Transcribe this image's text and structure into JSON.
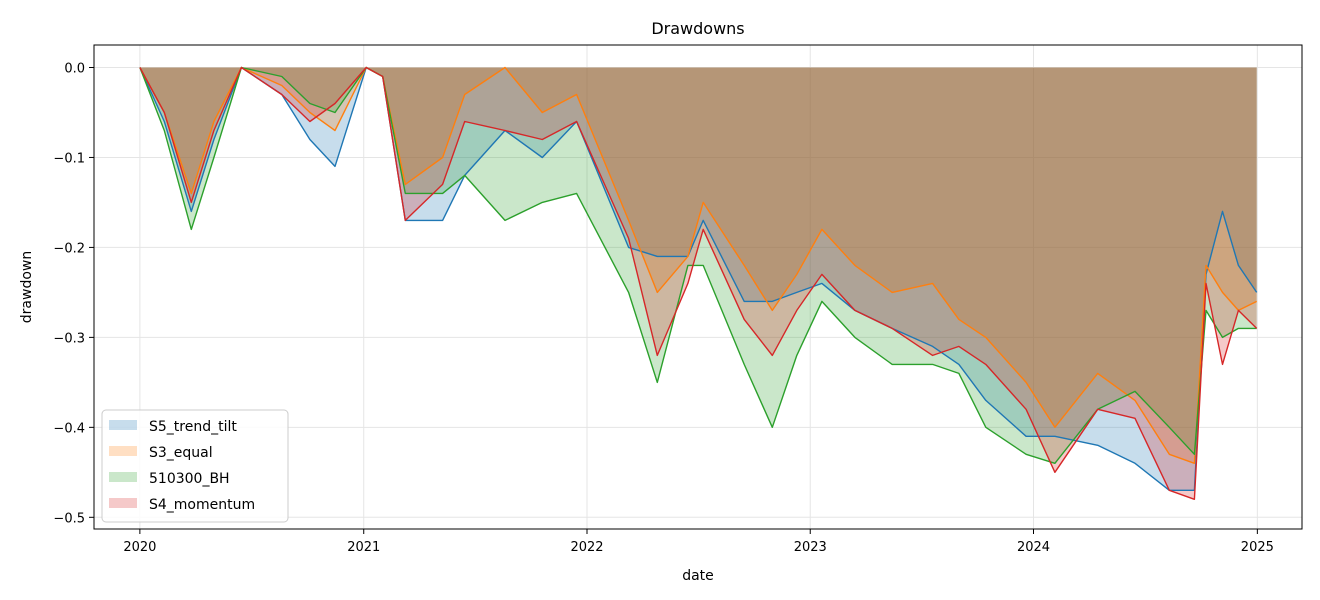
{
  "chart_data": {
    "type": "area",
    "title": "Drawdowns",
    "xlabel": "date",
    "ylabel": "drawdown",
    "xlim": [
      "2019-10-18",
      "2025-03-15"
    ],
    "ylim": [
      -0.513,
      0.025
    ],
    "x_ticks": [
      "2020-01-01",
      "2021-01-01",
      "2022-01-01",
      "2023-01-01",
      "2024-01-01",
      "2025-01-01"
    ],
    "x_tick_labels": [
      "2020",
      "2021",
      "2022",
      "2023",
      "2024",
      "2025"
    ],
    "y_ticks": [
      0.0,
      -0.1,
      -0.2,
      -0.3,
      -0.4,
      -0.5
    ],
    "y_tick_labels": [
      "0.0",
      "−0.1",
      "−0.2",
      "−0.3",
      "−0.4",
      "−0.5"
    ],
    "grid": true,
    "legend_position": "lower-left",
    "fill_alpha": 0.25,
    "series": [
      {
        "name": "S5_trend_tilt",
        "color": "#1f77b4",
        "points": [
          [
            "2020-01-01",
            0.0
          ],
          [
            "2020-02-10",
            -0.06
          ],
          [
            "2020-03-25",
            -0.16
          ],
          [
            "2020-05-01",
            -0.08
          ],
          [
            "2020-06-15",
            0.0
          ],
          [
            "2020-08-20",
            -0.03
          ],
          [
            "2020-10-05",
            -0.08
          ],
          [
            "2020-11-15",
            -0.11
          ],
          [
            "2021-01-05",
            0.0
          ],
          [
            "2021-02-01",
            -0.01
          ],
          [
            "2021-03-10",
            -0.17
          ],
          [
            "2021-05-10",
            -0.17
          ],
          [
            "2021-06-15",
            -0.12
          ],
          [
            "2021-08-20",
            -0.07
          ],
          [
            "2021-10-20",
            -0.1
          ],
          [
            "2021-12-15",
            -0.06
          ],
          [
            "2022-03-10",
            -0.2
          ],
          [
            "2022-04-26",
            -0.21
          ],
          [
            "2022-06-15",
            -0.21
          ],
          [
            "2022-07-10",
            -0.17
          ],
          [
            "2022-09-15",
            -0.26
          ],
          [
            "2022-10-31",
            -0.26
          ],
          [
            "2022-12-10",
            -0.25
          ],
          [
            "2023-01-20",
            -0.24
          ],
          [
            "2023-03-15",
            -0.27
          ],
          [
            "2023-05-15",
            -0.29
          ],
          [
            "2023-07-20",
            -0.31
          ],
          [
            "2023-09-01",
            -0.33
          ],
          [
            "2023-10-15",
            -0.37
          ],
          [
            "2023-12-20",
            -0.41
          ],
          [
            "2024-02-05",
            -0.41
          ],
          [
            "2024-04-15",
            -0.42
          ],
          [
            "2024-06-15",
            -0.44
          ],
          [
            "2024-08-10",
            -0.47
          ],
          [
            "2024-09-20",
            -0.47
          ],
          [
            "2024-10-09",
            -0.23
          ],
          [
            "2024-11-05",
            -0.16
          ],
          [
            "2024-12-01",
            -0.22
          ],
          [
            "2024-12-31",
            -0.25
          ]
        ]
      },
      {
        "name": "S3_equal",
        "color": "#ff7f0e",
        "points": [
          [
            "2020-01-01",
            0.0
          ],
          [
            "2020-02-10",
            -0.05
          ],
          [
            "2020-03-25",
            -0.14
          ],
          [
            "2020-05-01",
            -0.06
          ],
          [
            "2020-06-15",
            0.0
          ],
          [
            "2020-08-20",
            -0.02
          ],
          [
            "2020-10-05",
            -0.05
          ],
          [
            "2020-11-15",
            -0.07
          ],
          [
            "2021-01-05",
            0.0
          ],
          [
            "2021-02-01",
            -0.01
          ],
          [
            "2021-03-10",
            -0.13
          ],
          [
            "2021-05-10",
            -0.1
          ],
          [
            "2021-06-15",
            -0.03
          ],
          [
            "2021-08-20",
            0.0
          ],
          [
            "2021-10-20",
            -0.05
          ],
          [
            "2021-12-15",
            -0.03
          ],
          [
            "2022-03-10",
            -0.17
          ],
          [
            "2022-04-26",
            -0.25
          ],
          [
            "2022-06-15",
            -0.21
          ],
          [
            "2022-07-10",
            -0.15
          ],
          [
            "2022-09-15",
            -0.22
          ],
          [
            "2022-10-31",
            -0.27
          ],
          [
            "2022-12-10",
            -0.23
          ],
          [
            "2023-01-20",
            -0.18
          ],
          [
            "2023-03-15",
            -0.22
          ],
          [
            "2023-05-15",
            -0.25
          ],
          [
            "2023-07-20",
            -0.24
          ],
          [
            "2023-09-01",
            -0.28
          ],
          [
            "2023-10-15",
            -0.3
          ],
          [
            "2023-12-20",
            -0.35
          ],
          [
            "2024-02-05",
            -0.4
          ],
          [
            "2024-04-15",
            -0.34
          ],
          [
            "2024-06-15",
            -0.37
          ],
          [
            "2024-08-10",
            -0.43
          ],
          [
            "2024-09-20",
            -0.44
          ],
          [
            "2024-10-09",
            -0.22
          ],
          [
            "2024-11-05",
            -0.25
          ],
          [
            "2024-12-01",
            -0.27
          ],
          [
            "2024-12-31",
            -0.26
          ]
        ]
      },
      {
        "name": "510300_BH",
        "color": "#2ca02c",
        "points": [
          [
            "2020-01-01",
            0.0
          ],
          [
            "2020-02-10",
            -0.07
          ],
          [
            "2020-03-25",
            -0.18
          ],
          [
            "2020-05-01",
            -0.1
          ],
          [
            "2020-06-15",
            0.0
          ],
          [
            "2020-08-20",
            -0.01
          ],
          [
            "2020-10-05",
            -0.04
          ],
          [
            "2020-11-15",
            -0.05
          ],
          [
            "2021-01-05",
            0.0
          ],
          [
            "2021-02-01",
            -0.01
          ],
          [
            "2021-03-10",
            -0.14
          ],
          [
            "2021-05-10",
            -0.14
          ],
          [
            "2021-06-15",
            -0.12
          ],
          [
            "2021-08-20",
            -0.17
          ],
          [
            "2021-10-20",
            -0.15
          ],
          [
            "2021-12-15",
            -0.14
          ],
          [
            "2022-03-10",
            -0.25
          ],
          [
            "2022-04-26",
            -0.35
          ],
          [
            "2022-06-15",
            -0.22
          ],
          [
            "2022-07-10",
            -0.22
          ],
          [
            "2022-09-15",
            -0.33
          ],
          [
            "2022-10-31",
            -0.4
          ],
          [
            "2022-12-10",
            -0.32
          ],
          [
            "2023-01-20",
            -0.26
          ],
          [
            "2023-03-15",
            -0.3
          ],
          [
            "2023-05-15",
            -0.33
          ],
          [
            "2023-07-20",
            -0.33
          ],
          [
            "2023-09-01",
            -0.34
          ],
          [
            "2023-10-15",
            -0.4
          ],
          [
            "2023-12-20",
            -0.43
          ],
          [
            "2024-02-05",
            -0.44
          ],
          [
            "2024-04-15",
            -0.38
          ],
          [
            "2024-06-15",
            -0.36
          ],
          [
            "2024-08-10",
            -0.4
          ],
          [
            "2024-09-20",
            -0.43
          ],
          [
            "2024-10-09",
            -0.27
          ],
          [
            "2024-11-05",
            -0.3
          ],
          [
            "2024-12-01",
            -0.29
          ],
          [
            "2024-12-31",
            -0.29
          ]
        ]
      },
      {
        "name": "S4_momentum",
        "color": "#d62728",
        "points": [
          [
            "2020-01-01",
            0.0
          ],
          [
            "2020-02-10",
            -0.05
          ],
          [
            "2020-03-25",
            -0.15
          ],
          [
            "2020-05-01",
            -0.07
          ],
          [
            "2020-06-15",
            0.0
          ],
          [
            "2020-08-20",
            -0.03
          ],
          [
            "2020-10-05",
            -0.06
          ],
          [
            "2020-11-15",
            -0.04
          ],
          [
            "2021-01-05",
            0.0
          ],
          [
            "2021-02-01",
            -0.01
          ],
          [
            "2021-03-10",
            -0.17
          ],
          [
            "2021-05-10",
            -0.13
          ],
          [
            "2021-06-15",
            -0.06
          ],
          [
            "2021-08-20",
            -0.07
          ],
          [
            "2021-10-20",
            -0.08
          ],
          [
            "2021-12-15",
            -0.06
          ],
          [
            "2022-03-10",
            -0.19
          ],
          [
            "2022-04-26",
            -0.32
          ],
          [
            "2022-06-15",
            -0.24
          ],
          [
            "2022-07-10",
            -0.18
          ],
          [
            "2022-09-15",
            -0.28
          ],
          [
            "2022-10-31",
            -0.32
          ],
          [
            "2022-12-10",
            -0.27
          ],
          [
            "2023-01-20",
            -0.23
          ],
          [
            "2023-03-15",
            -0.27
          ],
          [
            "2023-05-15",
            -0.29
          ],
          [
            "2023-07-20",
            -0.32
          ],
          [
            "2023-09-01",
            -0.31
          ],
          [
            "2023-10-15",
            -0.33
          ],
          [
            "2023-12-20",
            -0.38
          ],
          [
            "2024-02-05",
            -0.45
          ],
          [
            "2024-04-15",
            -0.38
          ],
          [
            "2024-06-15",
            -0.39
          ],
          [
            "2024-08-10",
            -0.47
          ],
          [
            "2024-09-20",
            -0.48
          ],
          [
            "2024-10-09",
            -0.24
          ],
          [
            "2024-11-05",
            -0.33
          ],
          [
            "2024-12-01",
            -0.27
          ],
          [
            "2024-12-31",
            -0.29
          ]
        ]
      }
    ]
  }
}
